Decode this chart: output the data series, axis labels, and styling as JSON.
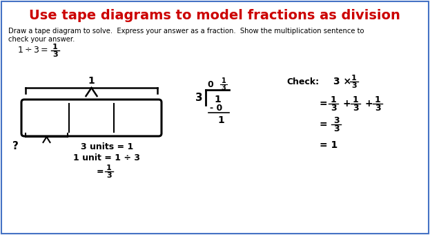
{
  "title": "Use tape diagrams to model fractions as division",
  "title_color": "#CC0000",
  "title_fontsize": 14,
  "bg_color": "#FFFFFF",
  "border_color": "#4472C4",
  "instruction_line1": "Draw a tape diagram to solve.  Express your answer as a fraction.  Show the multiplication sentence to",
  "instruction_line2": "check your answer.",
  "text_color": "#000000",
  "bold_color": "#1F1F1F"
}
